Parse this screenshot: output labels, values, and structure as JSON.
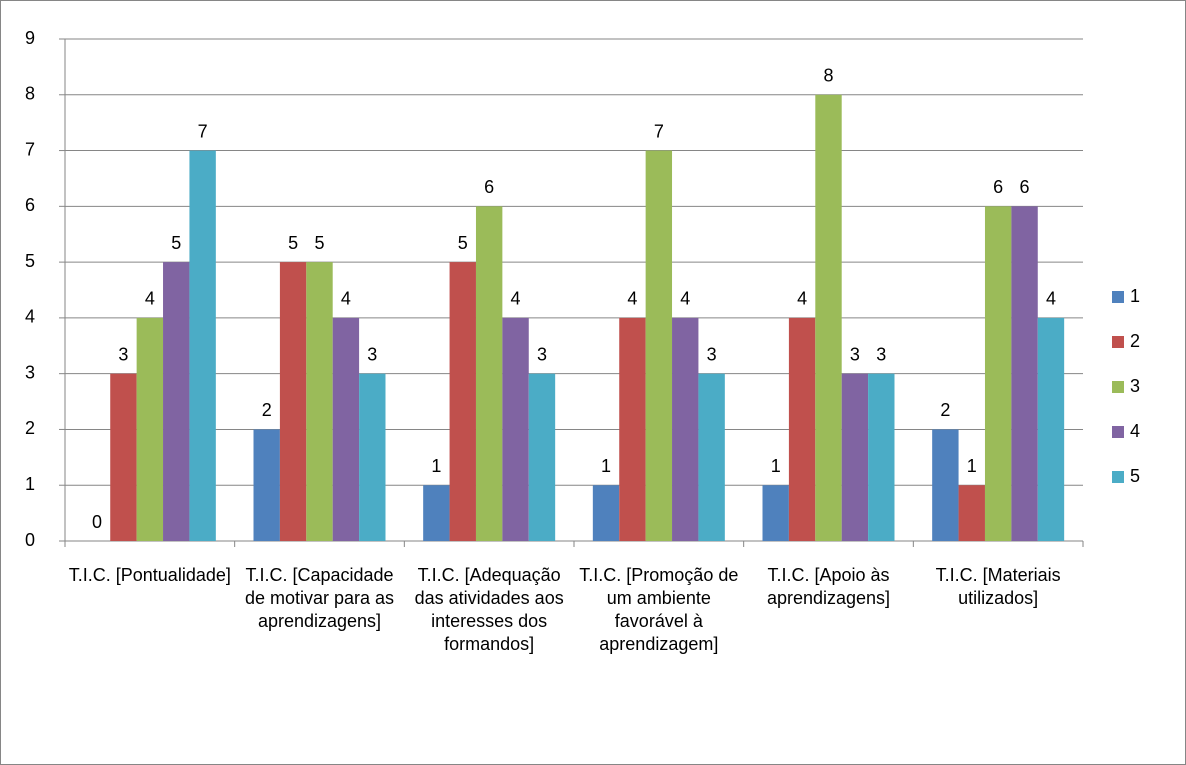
{
  "chart_data": {
    "type": "bar",
    "categories": [
      "T.I.C. [Pontualidade]",
      "T.I.C. [Capacidade de motivar para as aprendizagens]",
      "T.I.C. [Adequação das atividades aos interesses dos formandos]",
      "T.I.C. [Promoção de um ambiente favorável à aprendizagem]",
      "T.I.C. [Apoio às aprendizagens]",
      "T.I.C. [Materiais utilizados]"
    ],
    "series": [
      {
        "name": "1",
        "color": "#4f81bd",
        "values": [
          0,
          2,
          1,
          1,
          1,
          2
        ]
      },
      {
        "name": "2",
        "color": "#c0504d",
        "values": [
          3,
          5,
          5,
          4,
          4,
          1
        ]
      },
      {
        "name": "3",
        "color": "#9bbb59",
        "values": [
          4,
          5,
          6,
          7,
          8,
          6
        ]
      },
      {
        "name": "4",
        "color": "#8064a2",
        "values": [
          5,
          4,
          4,
          4,
          3,
          6
        ]
      },
      {
        "name": "5",
        "color": "#4bacc6",
        "values": [
          7,
          3,
          3,
          3,
          3,
          4
        ]
      }
    ],
    "ylim": [
      0,
      9
    ],
    "yticks": [
      0,
      1,
      2,
      3,
      4,
      5,
      6,
      7,
      8,
      9
    ],
    "grid": true,
    "legend": "right"
  }
}
